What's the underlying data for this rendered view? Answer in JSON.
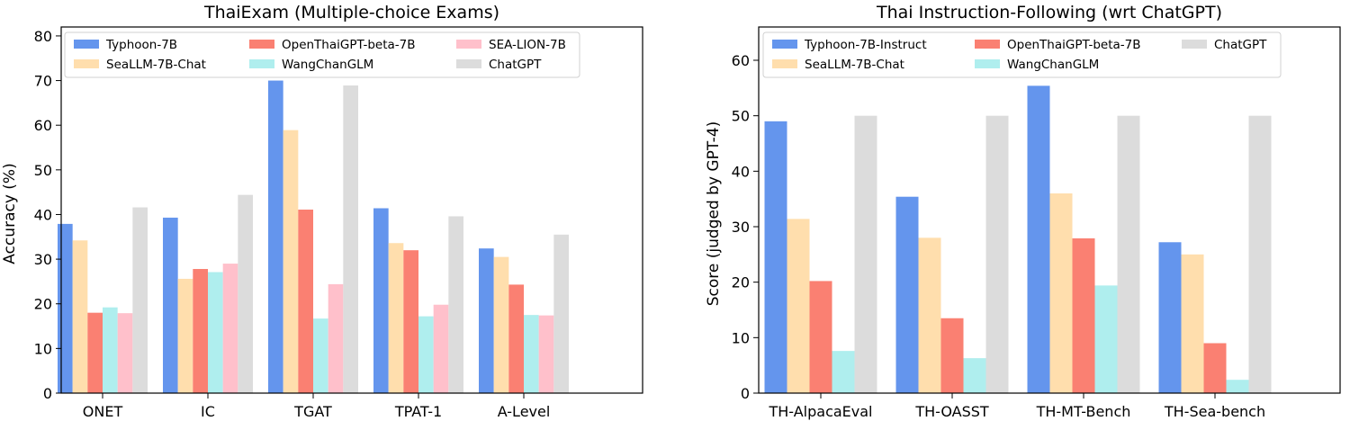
{
  "chart_data": [
    {
      "type": "bar",
      "title": "ThaiExam (Multiple-choice Exams)",
      "xlabel": "",
      "ylabel": "Accuracy (%)",
      "ylim": [
        0,
        82
      ],
      "yticks": [
        0,
        10,
        20,
        30,
        40,
        50,
        60,
        70,
        80
      ],
      "grid": false,
      "legend_position": "top",
      "categories": [
        "ONET",
        "IC",
        "TGAT",
        "TPAT-1",
        "A-Level"
      ],
      "series": [
        {
          "name": "Typhoon-7B",
          "color": "#6495ED",
          "values": [
            37.9,
            39.3,
            70.0,
            41.4,
            32.4
          ]
        },
        {
          "name": "SeaLLM-7B-Chat",
          "color": "#FFDEAD",
          "values": [
            34.2,
            25.6,
            58.9,
            33.6,
            30.5
          ]
        },
        {
          "name": "OpenThaiGPT-beta-7B",
          "color": "#FA8072",
          "values": [
            18.0,
            27.8,
            41.1,
            32.0,
            24.3
          ]
        },
        {
          "name": "WangChanGLM",
          "color": "#AFEEEE",
          "values": [
            19.2,
            27.1,
            16.7,
            17.2,
            17.5
          ]
        },
        {
          "name": "SEA-LION-7B",
          "color": "#FFC0CB",
          "values": [
            17.9,
            29.0,
            24.4,
            19.8,
            17.4
          ]
        },
        {
          "name": "ChatGPT",
          "color": "#DCDCDC",
          "values": [
            41.6,
            44.4,
            68.9,
            39.6,
            35.5
          ]
        }
      ]
    },
    {
      "type": "bar",
      "title": "Thai Instruction-Following (wrt ChatGPT)",
      "xlabel": "",
      "ylabel": "Score (judged by GPT-4)",
      "ylim": [
        0,
        66
      ],
      "yticks": [
        0,
        10,
        20,
        30,
        40,
        50,
        60
      ],
      "grid": false,
      "legend_position": "top",
      "categories": [
        "TH-AlpacaEval",
        "TH-OASST",
        "TH-MT-Bench",
        "TH-Sea-bench"
      ],
      "series": [
        {
          "name": "Typhoon-7B-Instruct",
          "color": "#6495ED",
          "values": [
            49.0,
            35.4,
            55.4,
            27.2
          ]
        },
        {
          "name": "SeaLLM-7B-Chat",
          "color": "#FFDEAD",
          "values": [
            31.4,
            28.0,
            36.0,
            25.0
          ]
        },
        {
          "name": "OpenThaiGPT-beta-7B",
          "color": "#FA8072",
          "values": [
            20.2,
            13.5,
            27.9,
            9.0
          ]
        },
        {
          "name": "WangChanGLM",
          "color": "#AFEEEE",
          "values": [
            7.6,
            6.3,
            19.4,
            2.4
          ]
        },
        {
          "name": "ChatGPT",
          "color": "#DCDCDC",
          "values": [
            50.0,
            50.0,
            50.0,
            50.0
          ]
        }
      ]
    }
  ]
}
